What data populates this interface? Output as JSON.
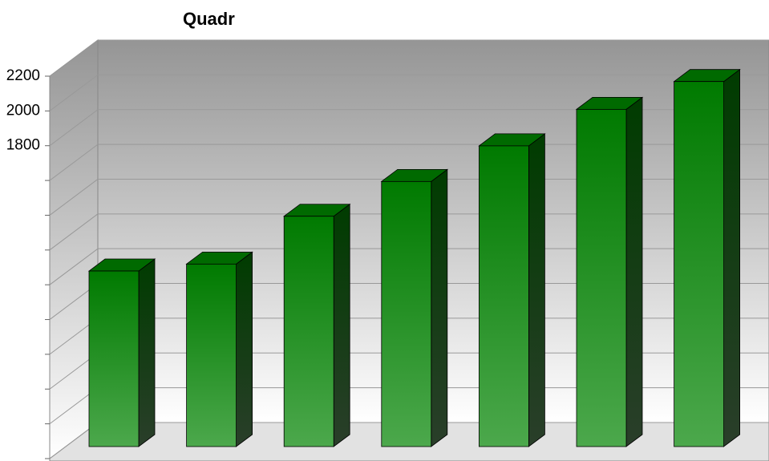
{
  "chart_data": {
    "type": "bar3d",
    "title": "Quadr",
    "values": [
      1010,
      1050,
      1325,
      1525,
      1730,
      1940,
      2100
    ],
    "color": "#008000",
    "ylim": [
      0,
      2200
    ],
    "yticks": [
      {
        "value": 0,
        "label": null
      },
      {
        "value": 200,
        "label": null
      },
      {
        "value": 400,
        "label": null
      },
      {
        "value": 600,
        "label": null
      },
      {
        "value": 800,
        "label": null
      },
      {
        "value": 1000,
        "label": null
      },
      {
        "value": 1200,
        "label": null
      },
      {
        "value": 1400,
        "label": null
      },
      {
        "value": 1600,
        "label": null
      },
      {
        "value": 1800,
        "label": "1800"
      },
      {
        "value": 2000,
        "label": "2000"
      },
      {
        "value": 2200,
        "label": "2200"
      }
    ],
    "grid": true
  }
}
